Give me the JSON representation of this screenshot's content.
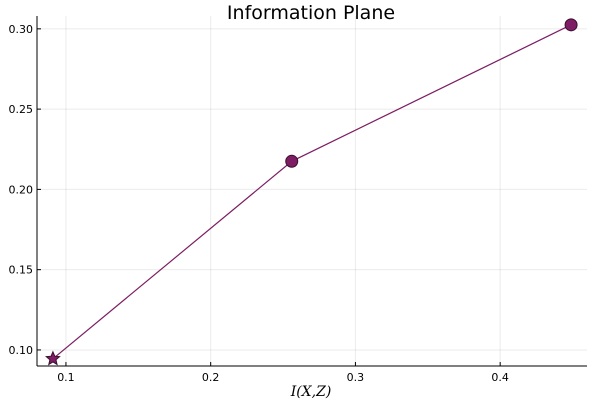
{
  "chart_data": {
    "type": "line",
    "title": "Information Plane",
    "xlabel": "I(X,Z)",
    "ylabel": "",
    "xlim": [
      0.08,
      0.46
    ],
    "ylim": [
      0.09,
      0.308
    ],
    "xticks": [
      "0.1",
      "0.2",
      "0.3",
      "0.4"
    ],
    "xtick_values": [
      0.1,
      0.2,
      0.3,
      0.4
    ],
    "yticks": [
      "0.10",
      "0.15",
      "0.20",
      "0.25",
      "0.30"
    ],
    "ytick_values": [
      0.1,
      0.15,
      0.2,
      0.25,
      0.3
    ],
    "grid": true,
    "legend": "none",
    "series": [
      {
        "x": [
          0.091,
          0.256,
          0.449
        ],
        "y": [
          0.0945,
          0.2175,
          0.3025
        ],
        "markers": [
          "star",
          "circle",
          "circle"
        ]
      }
    ],
    "color": "#7d1d63"
  }
}
